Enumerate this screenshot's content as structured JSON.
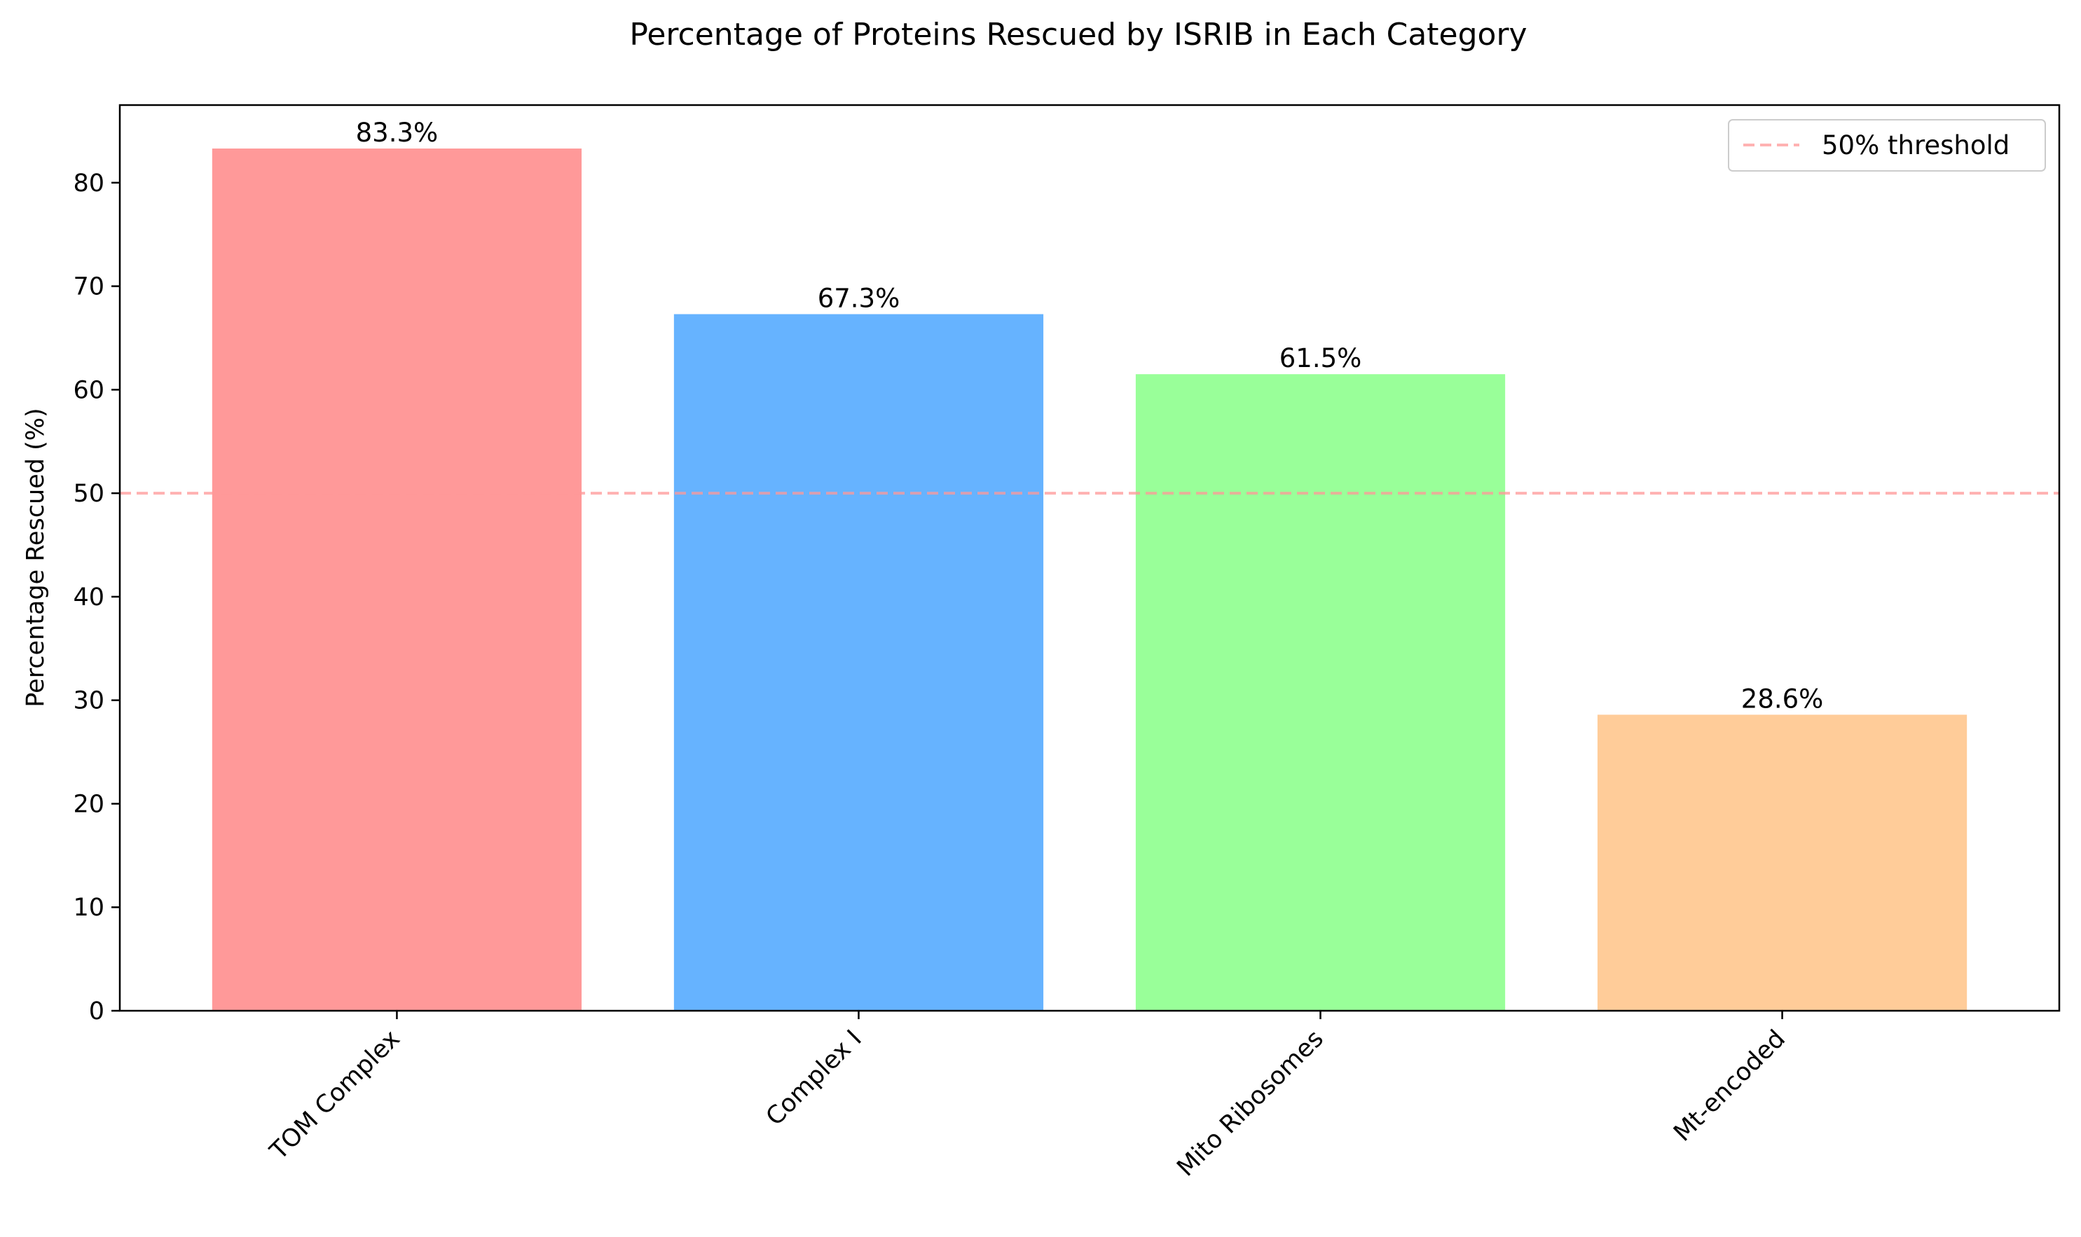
{
  "chart_data": {
    "type": "bar",
    "title": "Percentage of Proteins Rescued by ISRIB in Each Category",
    "xlabel": "",
    "ylabel": "Percentage Rescued (%)",
    "categories": [
      "TOM Complex",
      "Complex I",
      "Mito Ribosomes",
      "Mt-encoded"
    ],
    "values": [
      83.3,
      67.3,
      61.5,
      28.6
    ],
    "value_labels": [
      "83.3%",
      "67.3%",
      "61.5%",
      "28.6%"
    ],
    "colors": [
      "#ff9999",
      "#66b3ff",
      "#99ff99",
      "#ffcc99"
    ],
    "ylim": [
      0,
      87.5
    ],
    "yticks": [
      0,
      10,
      20,
      30,
      40,
      50,
      60,
      70,
      80
    ],
    "grid": false,
    "legend_position": "top-right",
    "threshold": {
      "value": 50,
      "label": "50% threshold",
      "color": "#ff9999",
      "style": "dashed"
    }
  }
}
